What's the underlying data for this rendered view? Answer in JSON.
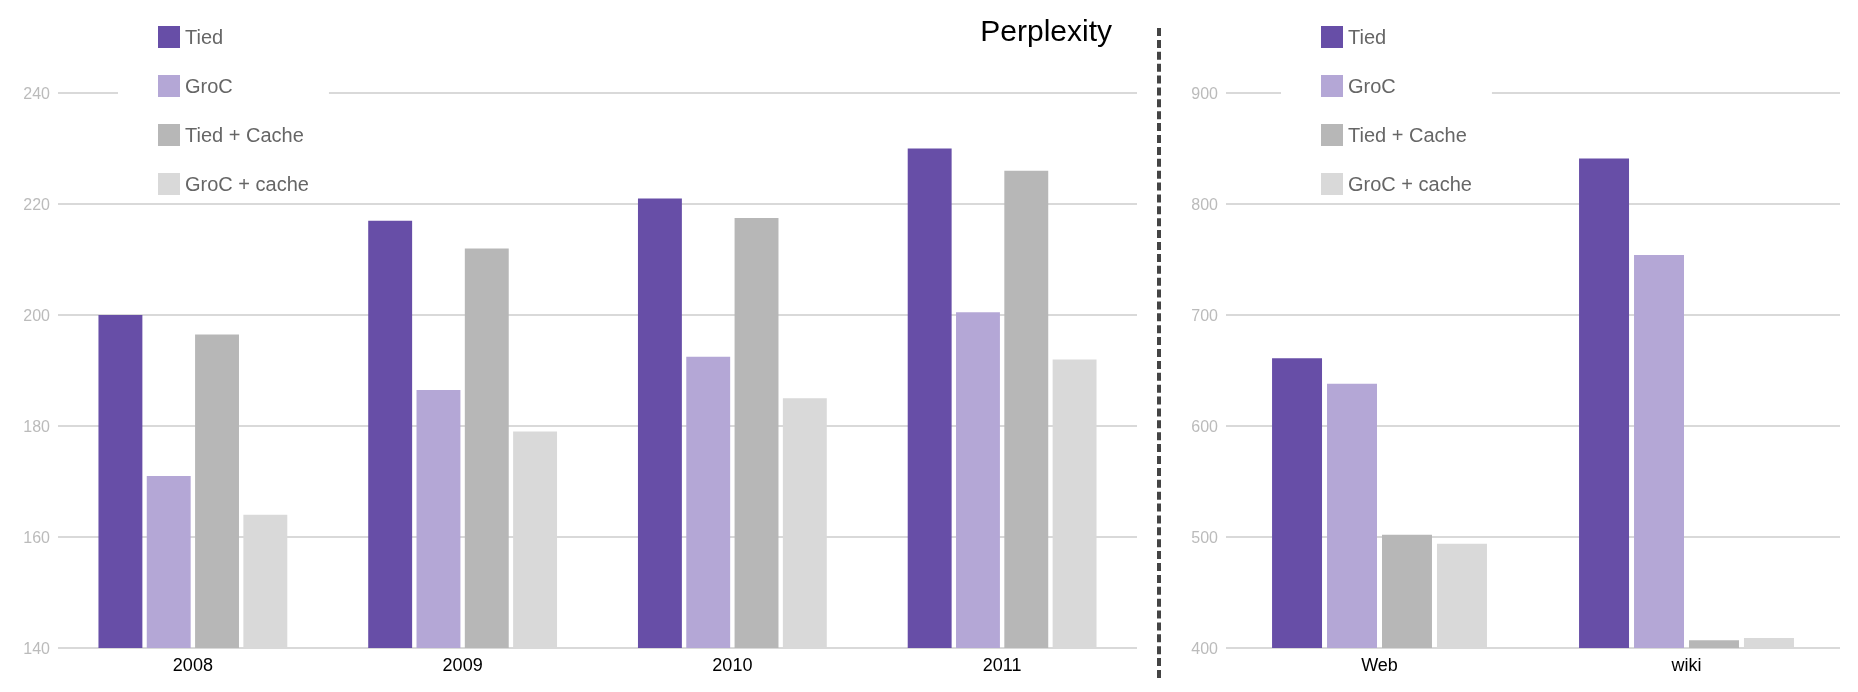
{
  "chart_data": [
    {
      "type": "bar",
      "title": "Perplexity",
      "categories": [
        "2008",
        "2009",
        "2010",
        "2011"
      ],
      "series": [
        {
          "name": "Tied",
          "color": "#674ea7",
          "values": [
            200,
            217,
            221,
            230
          ]
        },
        {
          "name": "GroC",
          "color": "#b4a7d6",
          "values": [
            171,
            186.5,
            192.5,
            200.5
          ]
        },
        {
          "name": "Tied + Cache",
          "color": "#b7b7b7",
          "values": [
            196.5,
            212,
            217.5,
            226
          ]
        },
        {
          "name": "GroC + cache",
          "color": "#d9d9d9",
          "values": [
            164,
            179,
            185,
            192
          ]
        }
      ],
      "ylim": [
        140,
        240
      ],
      "yticks": [
        140,
        160,
        180,
        200,
        220,
        240
      ],
      "grid": "y",
      "legend": "top left"
    },
    {
      "type": "bar",
      "categories": [
        "Web",
        "wiki"
      ],
      "series": [
        {
          "name": "Tied",
          "color": "#674ea7",
          "values": [
            661,
            841
          ]
        },
        {
          "name": "GroC",
          "color": "#b4a7d6",
          "values": [
            638,
            754
          ]
        },
        {
          "name": "Tied + Cache",
          "color": "#b7b7b7",
          "values": [
            502,
            407
          ]
        },
        {
          "name": "GroC + cache",
          "color": "#d9d9d9",
          "values": [
            494,
            409
          ]
        }
      ],
      "ylim": [
        400,
        900
      ],
      "yticks": [
        400,
        500,
        600,
        700,
        800,
        900
      ],
      "grid": "y",
      "legend": "top left"
    }
  ]
}
